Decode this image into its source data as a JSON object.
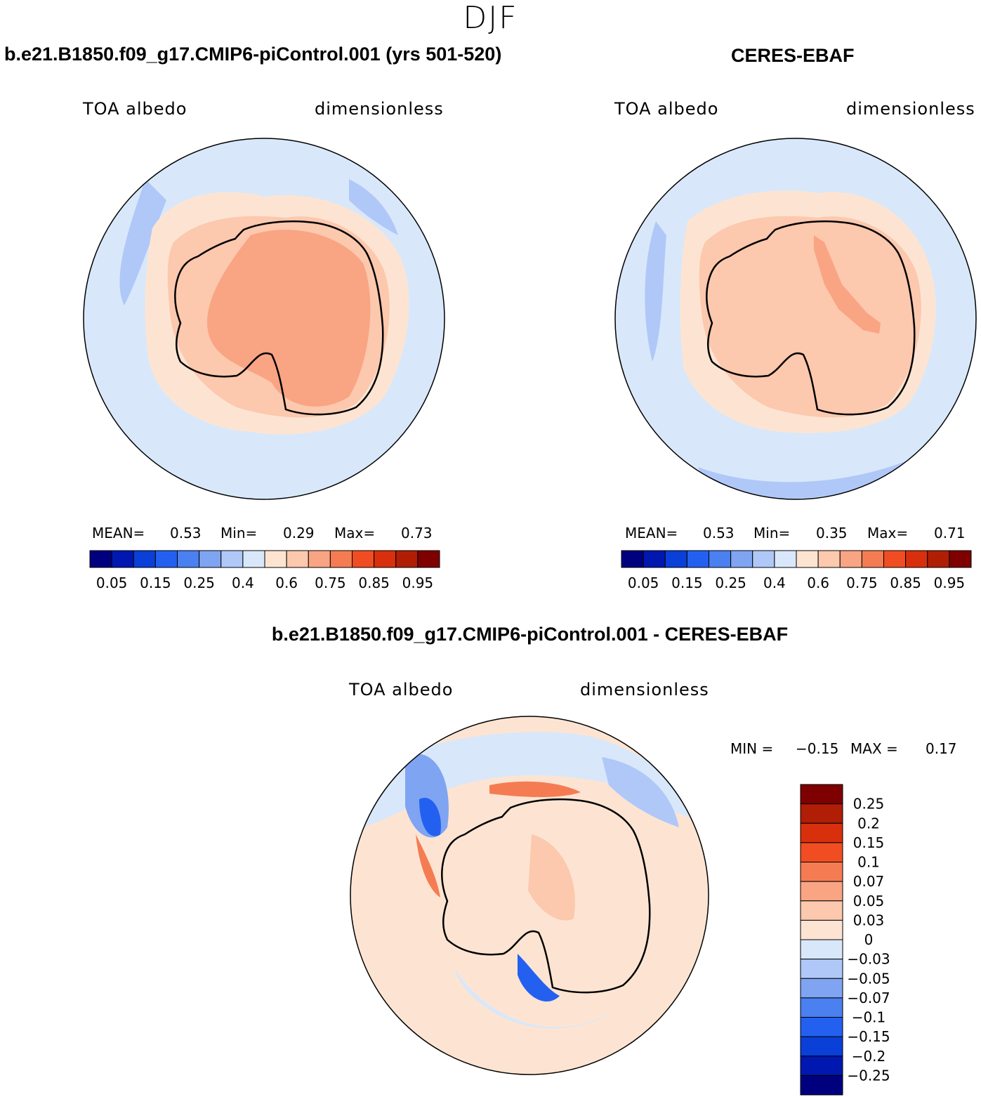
{
  "season": "DJF",
  "panels": {
    "model": {
      "title": "b.e21.B1850.f09_g17.CMIP6-piControl.001 (yrs 501-520)",
      "variable": "TOA albedo",
      "units": "dimensionless",
      "stats": {
        "mean_label": "MEAN=",
        "mean": "0.53",
        "min_label": "Min=",
        "min": "0.29",
        "max_label": "Max=",
        "max": "0.73"
      }
    },
    "obs": {
      "title": "CERES-EBAF",
      "variable": "TOA albedo",
      "units": "dimensionless",
      "stats": {
        "mean_label": "MEAN=",
        "mean": "0.53",
        "min_label": "Min=",
        "min": "0.35",
        "max_label": "Max=",
        "max": "0.71"
      }
    },
    "diff": {
      "title": "b.e21.B1850.f09_g17.CMIP6-piControl.001 - CERES-EBAF",
      "variable": "TOA albedo",
      "units": "dimensionless",
      "stats": {
        "min_label": "MIN =",
        "min": "−0.15",
        "max_label": "MAX =",
        "max": "0.17"
      }
    }
  },
  "colorbars": {
    "abs": {
      "colors": [
        "#00007f",
        "#0018b0",
        "#0a3fd8",
        "#2460f0",
        "#4a80f0",
        "#7fa4f2",
        "#b0c8f8",
        "#d8e8fa",
        "#fde4d2",
        "#fcc8ae",
        "#f9a483",
        "#f57c52",
        "#f04e22",
        "#d8300c",
        "#b01e06",
        "#7e0000"
      ],
      "tick_labels": [
        "0.05",
        "0.15",
        "0.25",
        "0.4",
        "0.6",
        "0.75",
        "0.85",
        "0.95"
      ]
    },
    "diff": {
      "colors": [
        "#00007f",
        "#0018b0",
        "#0a3fd8",
        "#2460f0",
        "#4a80f0",
        "#7fa4f2",
        "#b0c8f8",
        "#d8e8fa",
        "#fde4d2",
        "#fcc8ae",
        "#f9a483",
        "#f57c52",
        "#f04e22",
        "#d8300c",
        "#b01e06",
        "#7e0000"
      ],
      "tick_labels": [
        "−0.25",
        "−0.2",
        "−0.15",
        "−0.1",
        "−0.07",
        "−0.05",
        "−0.03",
        "0",
        "0.03",
        "0.05",
        "0.07",
        "0.1",
        "0.15",
        "0.2",
        "0.25"
      ]
    }
  },
  "map_colors": {
    "ocean": "#d8e8fa",
    "ocean_low": "#b0c8f8",
    "ocean_lower": "#7fa4f2",
    "ocean_min": "#2460f0",
    "ring": "#fde4d2",
    "land_mid": "#fcc8ae",
    "land_high": "#f9a483",
    "diff_hot": "#f04e22",
    "diff_warm": "#f57c52",
    "coast": "#000000"
  }
}
